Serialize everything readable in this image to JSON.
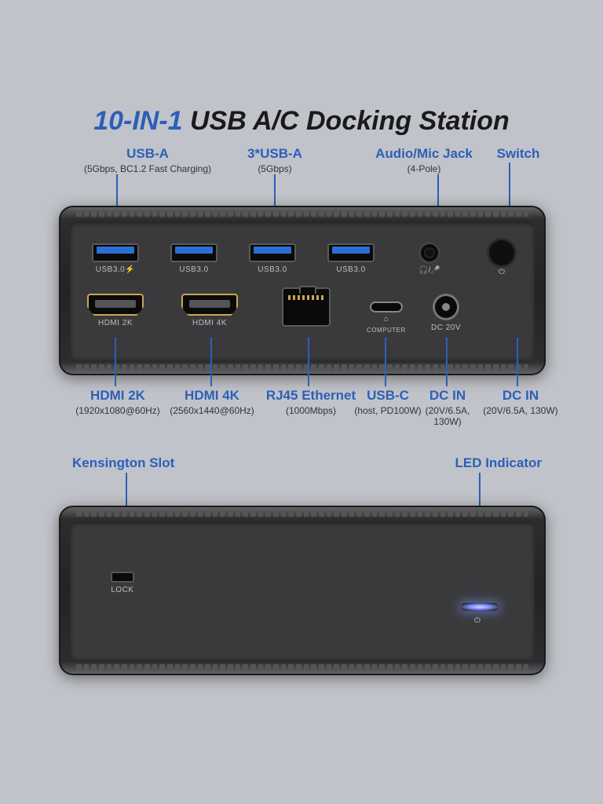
{
  "title_accent": "10-IN-1",
  "title_rest": " USB A/C Docking Station",
  "colors": {
    "accent_blue": "#2c5fb8",
    "usb_blue": "#2b6fd6",
    "hdmi_gold": "#c9a84f",
    "body_dark": "#232325",
    "background": "#c1c3ca",
    "label_grey": "#bfbfc4",
    "led_glow": "#7a8cff"
  },
  "rear": {
    "usb_a": {
      "label": "USB-A",
      "sub": "(5Gbps, BC1.2 Fast Charging)",
      "port_label": "USB3.0"
    },
    "usb_a3": {
      "label": "3*USB-A",
      "sub": "(5Gbps)",
      "port_label": "USB3.0"
    },
    "audio": {
      "label": "Audio/Mic Jack",
      "sub": "(4-Pole)",
      "icon": "🎧/🎤"
    },
    "switch": {
      "label": "Switch",
      "sub": "",
      "icon": "⏻"
    },
    "hdmi2k": {
      "label": "HDMI 2K",
      "sub": "(1920x1080@60Hz)",
      "port_label": "HDMI 2K"
    },
    "hdmi4k": {
      "label": "HDMI 4K",
      "sub": "(2560x1440@60Hz)",
      "port_label": "HDMI 4K"
    },
    "rj45": {
      "label": "RJ45 Ethernet",
      "sub": "(1000Mbps)"
    },
    "usb_c": {
      "label": "USB-C",
      "sub": "(host, PD100W)",
      "port_label": "COMPUTER",
      "icon": "💻"
    },
    "dc": {
      "label": "DC IN",
      "sub": "(20V/6.5A, 130W)",
      "port_label": "DC 20V"
    }
  },
  "front": {
    "kensington": {
      "label": "Kensington Slot",
      "port_label": "LOCK"
    },
    "led": {
      "label": "LED Indicator"
    }
  }
}
